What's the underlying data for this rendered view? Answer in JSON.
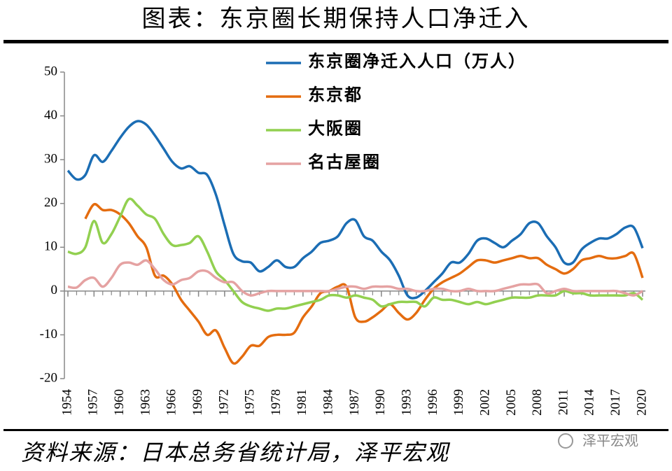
{
  "chart_data": {
    "type": "line",
    "title": "图表：东京圈长期保持人口净迁入",
    "source": "资料来源：日本总务省统计局，泽平宏观",
    "watermark": "泽平宏观",
    "x": [
      1954,
      1955,
      1956,
      1957,
      1958,
      1959,
      1960,
      1961,
      1962,
      1963,
      1964,
      1965,
      1966,
      1967,
      1968,
      1969,
      1970,
      1971,
      1972,
      1973,
      1974,
      1975,
      1976,
      1977,
      1978,
      1979,
      1980,
      1981,
      1982,
      1983,
      1984,
      1985,
      1986,
      1987,
      1988,
      1989,
      1990,
      1991,
      1992,
      1993,
      1994,
      1995,
      1996,
      1997,
      1998,
      1999,
      2000,
      2001,
      2002,
      2003,
      2004,
      2005,
      2006,
      2007,
      2008,
      2009,
      2010,
      2011,
      2012,
      2013,
      2014,
      2015,
      2016,
      2017,
      2018,
      2019,
      2020
    ],
    "xlim": [
      1954,
      2020
    ],
    "xticks": [
      1954,
      1957,
      1960,
      1963,
      1966,
      1969,
      1972,
      1975,
      1978,
      1981,
      1984,
      1987,
      1990,
      1993,
      1996,
      1999,
      2002,
      2005,
      2008,
      2011,
      2014,
      2017,
      2020
    ],
    "ylim": [
      -20,
      50
    ],
    "yticks": [
      50,
      40,
      30,
      20,
      10,
      0,
      -10,
      -20
    ],
    "series": [
      {
        "name": "东京圈净迁入人口（万人）",
        "color": "#1b6db4",
        "values": [
          27.5,
          25.5,
          26.5,
          31,
          29.5,
          32,
          35,
          37.5,
          38.8,
          38,
          35.5,
          32.5,
          29.5,
          28,
          28.5,
          27,
          26.5,
          22,
          15,
          8.5,
          6.8,
          6.5,
          4.5,
          5.5,
          7,
          5.5,
          5.5,
          7.5,
          9,
          11,
          11.5,
          12.5,
          15.5,
          16.2,
          12.5,
          11.5,
          9,
          7,
          3.5,
          -1,
          -1.5,
          0,
          2,
          4,
          6.5,
          6.5,
          8.5,
          11.5,
          12,
          11,
          10,
          11.5,
          13,
          15.5,
          15.5,
          12.5,
          10,
          6.5,
          6.5,
          9.5,
          11,
          12,
          12,
          13,
          14.5,
          14.5,
          9.8
        ]
      },
      {
        "name": "东京都",
        "color": "#e46c0f",
        "values": [
          null,
          null,
          16.5,
          19.8,
          18.5,
          18.5,
          17.5,
          15.5,
          12.5,
          10,
          3.5,
          3.5,
          1.5,
          -2,
          -4.5,
          -7,
          -10,
          -9,
          -13,
          -16.5,
          -15,
          -12.5,
          -12.5,
          -10.5,
          -10,
          -10,
          -9.5,
          -6,
          -3.5,
          -0.5,
          0,
          1,
          1,
          -6,
          -7,
          -6,
          -4.5,
          -3,
          -5,
          -6.5,
          -5,
          -2,
          0.5,
          2,
          3,
          4,
          5.5,
          7,
          7,
          6.5,
          7,
          7.5,
          8,
          7.5,
          7.5,
          6,
          5,
          4,
          5,
          7,
          7.5,
          8,
          7.5,
          7.5,
          8,
          8.5,
          3
        ]
      },
      {
        "name": "大阪圈",
        "color": "#92d050",
        "values": [
          9,
          8.5,
          10,
          16,
          11,
          13,
          17,
          21,
          19.5,
          17.5,
          16.5,
          13,
          10.5,
          10.5,
          11,
          12.5,
          9,
          4.5,
          2.5,
          0,
          -2.5,
          -3.5,
          -4,
          -4.5,
          -4,
          -4,
          -3.5,
          -3,
          -2.5,
          -2,
          -1,
          -1,
          -1.5,
          -1,
          -1.5,
          -2,
          -3.5,
          -3,
          -2.5,
          -2.5,
          -2.5,
          -3.5,
          -1.5,
          -2,
          -2,
          -2.5,
          -3,
          -2.5,
          -3,
          -2.5,
          -2,
          -1.5,
          -1.5,
          -1.5,
          -1,
          -1,
          -1,
          0,
          -0.5,
          -0.5,
          -1,
          -1,
          -1,
          -1,
          -1,
          -0.5,
          -2
        ]
      },
      {
        "name": "名古屋圈",
        "color": "#e5a2a2",
        "values": [
          1,
          0.8,
          2.5,
          3,
          1,
          3,
          6,
          6.5,
          6,
          7,
          5,
          2.5,
          1.5,
          2.5,
          3,
          4.5,
          4.5,
          3,
          2,
          2,
          0,
          -1,
          -0.5,
          0,
          0,
          0,
          0,
          0,
          0,
          0,
          0,
          0.5,
          1,
          1,
          0.5,
          1,
          1,
          1,
          0.5,
          0.5,
          0,
          0,
          0.5,
          0.5,
          0,
          0,
          0.5,
          0,
          0,
          0,
          0.5,
          1,
          1.5,
          1.5,
          1.5,
          -0.5,
          0,
          0.5,
          0,
          0,
          0,
          0,
          0,
          0,
          -0.5,
          -1,
          0
        ]
      }
    ]
  }
}
